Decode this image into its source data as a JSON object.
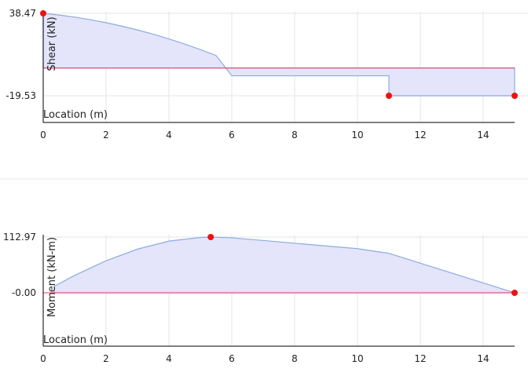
{
  "chart_data": [
    {
      "type": "area",
      "id": "shear",
      "xlabel": "Location (m)",
      "ylabel": "Shear (kN)",
      "xlim": [
        0,
        15
      ],
      "xticks": [
        0,
        2,
        4,
        6,
        8,
        10,
        12,
        14
      ],
      "ylim": [
        -19.53,
        38.47
      ],
      "ytick_labels": [
        "38.47",
        "-19.53"
      ],
      "baseline": 0,
      "grid": true,
      "series": [
        {
          "points": [
            [
              0,
              0
            ],
            [
              0,
              38.47
            ],
            [
              0.5,
              37.3
            ],
            [
              1.0,
              35.8
            ],
            [
              1.5,
              34.0
            ],
            [
              2.0,
              31.9
            ],
            [
              2.5,
              29.5
            ],
            [
              3.0,
              26.8
            ],
            [
              3.5,
              23.8
            ],
            [
              4.0,
              20.5
            ],
            [
              4.5,
              16.9
            ],
            [
              5.0,
              13.0
            ],
            [
              5.5,
              8.8
            ],
            [
              6.0,
              -5.47
            ],
            [
              11.0,
              -5.47
            ],
            [
              11.0,
              -19.53
            ],
            [
              15.0,
              -19.53
            ],
            [
              15.0,
              0
            ]
          ]
        }
      ],
      "extremes": [
        [
          0,
          38.47
        ],
        [
          11.0,
          -19.53
        ],
        [
          15.0,
          -19.53
        ]
      ]
    },
    {
      "type": "area",
      "id": "moment",
      "xlabel": "Location (m)",
      "ylabel": "Moment (kN-m)",
      "xlim": [
        0,
        15
      ],
      "xticks": [
        0,
        2,
        4,
        6,
        8,
        10,
        12,
        14
      ],
      "ylim": [
        -0.0,
        112.97
      ],
      "ytick_labels": [
        "112.97",
        "-0.00"
      ],
      "baseline": 0,
      "grid": true,
      "series": [
        {
          "points": [
            [
              0.35,
              13.2
            ],
            [
              1.0,
              35.3
            ],
            [
              2.0,
              65.0
            ],
            [
              3.0,
              88.5
            ],
            [
              4.0,
              104.8
            ],
            [
              5.0,
              112.2
            ],
            [
              5.33,
              112.97
            ],
            [
              6.0,
              111.5
            ],
            [
              8.0,
              100.5
            ],
            [
              10.0,
              89.5
            ],
            [
              11.0,
              80.0
            ],
            [
              12.0,
              60.0
            ],
            [
              13.0,
              40.0
            ],
            [
              14.0,
              20.0
            ],
            [
              15.0,
              -0.0
            ]
          ]
        }
      ],
      "extremes": [
        [
          5.33,
          112.97
        ],
        [
          15.0,
          -0.0
        ]
      ]
    }
  ]
}
